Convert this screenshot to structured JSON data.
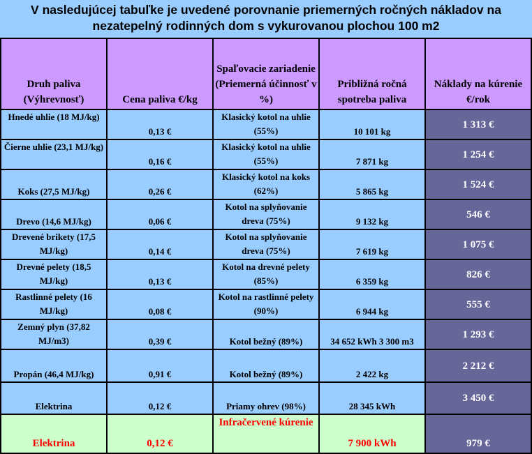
{
  "title": "V nasledujúcej tabuľke je uvedené porovnanie priemerných ročných nákladov na nezatepelný rodinných dom s vykurovanou plochou 100 m2",
  "headers": {
    "fuel_type": "Druh paliva (Výhrevnosť)",
    "fuel_price": "Cena paliva €/kg",
    "device": "Spaľovacie zariadenie (Priemerná účinnosť v %)",
    "consumption": "Približná ročná spotreba paliva",
    "cost": "Náklady na kúrenie €/rok"
  },
  "rows": [
    {
      "fuel": "Hnedé uhlie (18 MJ/kg)",
      "price": "0,13 €",
      "device": "Klasický kotol na uhlie (55%)",
      "consumption": "10 101 kg",
      "cost": "1 313 €"
    },
    {
      "fuel": "Čierne uhlie (23,1 MJ/kg)",
      "price": "0,16 €",
      "device": "Klasický kotol na uhlie (55%)",
      "consumption": "7 871 kg",
      "cost": "1 254 €"
    },
    {
      "fuel": "Koks (27,5 MJ/kg)",
      "price": "0,26 €",
      "device": "Klasický kotol na koks (62%)",
      "consumption": "5 865 kg",
      "cost": "1 524 €"
    },
    {
      "fuel": "Drevo (14,6 MJ/kg)",
      "price": "0,06 €",
      "device": "Kotol na splyňovanie dreva (75%)",
      "consumption": "9 132 kg",
      "cost": "546 €"
    },
    {
      "fuel": "Drevené brikety (17,5 MJ/kg)",
      "price": "0,14 €",
      "device": "Kotol na splyňovanie dreva (75%)",
      "consumption": "7 619 kg",
      "cost": "1 075 €"
    },
    {
      "fuel": "Drevné pelety (18,5 MJ/kg)",
      "price": "0,13 €",
      "device": "Kotol na drevné pelety (85%)",
      "consumption": "6 359 kg",
      "cost": "826 €"
    },
    {
      "fuel": "Rastlinné pelety (16 MJ/kg)",
      "price": "0,08 €",
      "device": "Kotol na rastlinné pelety (90%)",
      "consumption": "6 944 kg",
      "cost": "555 €"
    },
    {
      "fuel": "Zemný plyn (37,82 MJ/m3)",
      "price": "0,39 €",
      "device": "Kotol bežný (89%)",
      "consumption": "34 652 kWh 3 300 m3",
      "cost": "1 293 €"
    },
    {
      "fuel": "Propán (46,4 MJ/kg)",
      "price": "0,91 €",
      "device": "Kotol bežný (89%)",
      "consumption": "2 422 kg",
      "cost": "2 212 €"
    },
    {
      "fuel": "Elektrina",
      "price": "0,12 €",
      "device": "Priamy ohrev (98%)",
      "consumption": "28 345 kWh",
      "cost": "3 450 €"
    }
  ],
  "highlight_row": {
    "fuel": "Elektrina",
    "price": "0,12 €",
    "device": "Infračervené kúrenie",
    "consumption": "7 900 kWh",
    "cost": "979 €"
  },
  "colors": {
    "title_bg": "#99ccff",
    "header_bg": "#cc99ff",
    "row_bg": "#99ccff",
    "cost_bg": "#666699",
    "highlight_bg": "#ccffcc",
    "highlight_text": "#ff0000"
  }
}
